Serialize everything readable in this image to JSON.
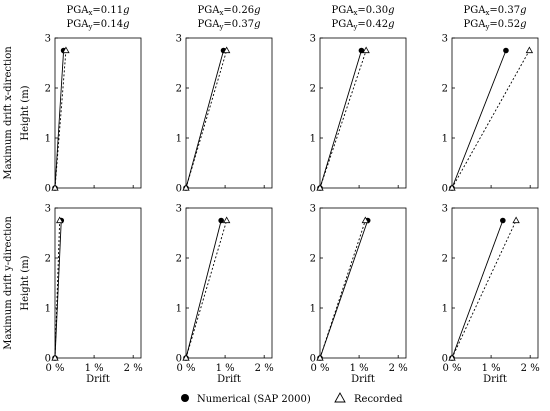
{
  "row_labels": [
    [
      "Maximum drift x-direction",
      "Height (m)"
    ],
    [
      "Maximum drift y-direction",
      "Height (m)"
    ]
  ],
  "x_ticks": [
    "0 %",
    "1 %",
    "2 %"
  ],
  "y_ticks": [
    "0",
    "1",
    "2",
    "3"
  ],
  "xlabel": "Drift",
  "legend": [
    {
      "label": "Numerical (SAP 2000)",
      "marker": "filled-circle"
    },
    {
      "label": "Recorded",
      "marker": "open-triangle"
    }
  ],
  "column_headers": [
    {
      "pga_x": "0.11",
      "pga_y": "0.14"
    },
    {
      "pga_x": "0.26",
      "pga_y": "0.37"
    },
    {
      "pga_x": "0.30",
      "pga_y": "0.42"
    },
    {
      "pga_x": "0.37",
      "pga_y": "0.52"
    }
  ],
  "header_text": {
    "prefix": "PGA",
    "sub_x": "x",
    "sub_y": "y",
    "eq": "=",
    "unit": "g"
  },
  "chart_data": {
    "type": "line",
    "xlabel": "Drift",
    "ylabel": "Height (m)",
    "x_unit": "%",
    "xlim": [
      0,
      2.2
    ],
    "ylim": [
      0,
      3
    ],
    "legend_position": "bottom",
    "panels": [
      {
        "row": "x-direction",
        "col": 0,
        "series": [
          {
            "name": "Numerical (SAP 2000)",
            "style": "solid",
            "points": [
              [
                0,
                0
              ],
              [
                0.22,
                2.75
              ]
            ]
          },
          {
            "name": "Recorded",
            "style": "dotted",
            "points": [
              [
                0,
                0
              ],
              [
                0.28,
                2.75
              ]
            ]
          }
        ]
      },
      {
        "row": "x-direction",
        "col": 1,
        "series": [
          {
            "name": "Numerical (SAP 2000)",
            "style": "solid",
            "points": [
              [
                0,
                0
              ],
              [
                0.96,
                2.75
              ]
            ]
          },
          {
            "name": "Recorded",
            "style": "dotted",
            "points": [
              [
                0,
                0
              ],
              [
                1.04,
                2.75
              ]
            ]
          }
        ]
      },
      {
        "row": "x-direction",
        "col": 2,
        "series": [
          {
            "name": "Numerical (SAP 2000)",
            "style": "solid",
            "points": [
              [
                0,
                0
              ],
              [
                1.06,
                2.75
              ]
            ]
          },
          {
            "name": "Recorded",
            "style": "dotted",
            "points": [
              [
                0,
                0
              ],
              [
                1.18,
                2.75
              ]
            ]
          }
        ]
      },
      {
        "row": "x-direction",
        "col": 3,
        "series": [
          {
            "name": "Numerical (SAP 2000)",
            "style": "solid",
            "points": [
              [
                0,
                0
              ],
              [
                1.38,
                2.75
              ]
            ]
          },
          {
            "name": "Recorded",
            "style": "dotted",
            "points": [
              [
                0,
                0
              ],
              [
                1.98,
                2.75
              ]
            ]
          }
        ]
      },
      {
        "row": "y-direction",
        "col": 0,
        "series": [
          {
            "name": "Numerical (SAP 2000)",
            "style": "solid",
            "points": [
              [
                0,
                0
              ],
              [
                0.16,
                2.75
              ]
            ]
          },
          {
            "name": "Recorded",
            "style": "dotted",
            "points": [
              [
                0,
                0
              ],
              [
                0.12,
                2.75
              ]
            ]
          }
        ]
      },
      {
        "row": "y-direction",
        "col": 1,
        "series": [
          {
            "name": "Numerical (SAP 2000)",
            "style": "solid",
            "points": [
              [
                0,
                0
              ],
              [
                0.9,
                2.75
              ]
            ]
          },
          {
            "name": "Recorded",
            "style": "dotted",
            "points": [
              [
                0,
                0
              ],
              [
                1.04,
                2.75
              ]
            ]
          }
        ]
      },
      {
        "row": "y-direction",
        "col": 2,
        "series": [
          {
            "name": "Numerical (SAP 2000)",
            "style": "solid",
            "points": [
              [
                0,
                0
              ],
              [
                1.22,
                2.75
              ]
            ]
          },
          {
            "name": "Recorded",
            "style": "dotted",
            "points": [
              [
                0,
                0
              ],
              [
                1.16,
                2.75
              ]
            ]
          }
        ]
      },
      {
        "row": "y-direction",
        "col": 3,
        "series": [
          {
            "name": "Numerical (SAP 2000)",
            "style": "solid",
            "points": [
              [
                0,
                0
              ],
              [
                1.3,
                2.75
              ]
            ]
          },
          {
            "name": "Recorded",
            "style": "dotted",
            "points": [
              [
                0,
                0
              ],
              [
                1.64,
                2.75
              ]
            ]
          }
        ]
      }
    ]
  }
}
